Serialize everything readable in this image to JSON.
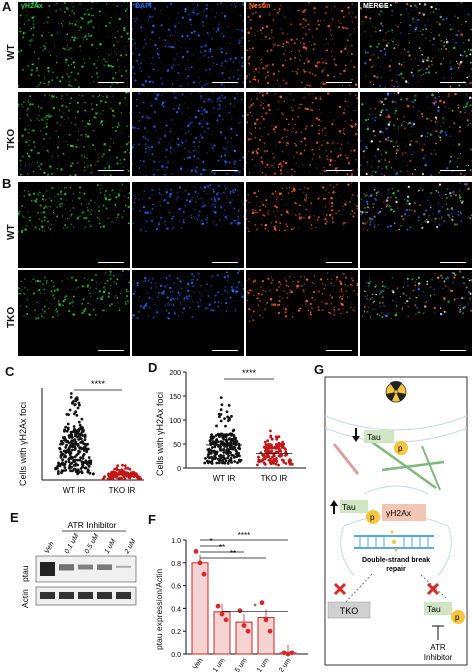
{
  "panels": {
    "a_letter": "A",
    "b_letter": "B",
    "c_letter": "C",
    "d_letter": "D",
    "e_letter": "E",
    "f_letter": "F",
    "g_letter": "G"
  },
  "microscopy": {
    "channels": [
      "γH2Ax",
      "DAPI",
      "Nestin",
      "MERGE"
    ],
    "row_wt": "WT",
    "row_tko": "TKO",
    "channel_colors": [
      "#2fd14a",
      "#2a6dff",
      "#ff6a2a",
      "#e8b7e8"
    ]
  },
  "chart_data": [
    {
      "type": "scatter",
      "panel": "C",
      "ylabel": "Cells with γH2Ax foci",
      "categories": [
        "WT IR",
        "TKO IR"
      ],
      "significance": "****",
      "note": "",
      "series": [
        {
          "values_summary": "WT IR distribution, median ~30, max ~90"
        },
        {
          "values_summary": "TKO IR distribution, median ~5, max ~15"
        }
      ]
    },
    {
      "type": "scatter",
      "panel": "D",
      "ylabel": "Cells with γH2Ax foci",
      "ylim": [
        0,
        200
      ],
      "yticks": [
        "0",
        "50",
        "100",
        "150",
        "200"
      ],
      "categories": [
        "WT IR",
        "TKO IR"
      ],
      "significance": "****",
      "series": [
        {
          "values_summary": "WT IR median ~45, max ~150"
        },
        {
          "values_summary": "TKO IR median ~30, max ~80"
        }
      ]
    },
    {
      "type": "bar",
      "panel": "F",
      "ylabel": "ptau expression/Actin",
      "ylim": [
        0,
        1.0
      ],
      "yticks": [
        "0.0",
        "0.2",
        "0.4",
        "0.6",
        "0.8",
        "1.0"
      ],
      "categories": [
        "Veh",
        "0.1 um",
        "0.5 um",
        "1 um",
        "2 um"
      ],
      "values": [
        0.8,
        0.37,
        0.28,
        0.32,
        0.01
      ],
      "points": [
        [
          0.9,
          0.8,
          0.7
        ],
        [
          0.42,
          0.35,
          0.3
        ],
        [
          0.38,
          0.25,
          0.2
        ],
        [
          0.45,
          0.3,
          0.2
        ],
        [
          0.01,
          0.0,
          0.01
        ]
      ],
      "significance": [
        "*",
        "**",
        "**",
        "****",
        "*"
      ]
    }
  ],
  "western": {
    "title": "ATR Inhibitor",
    "lanes": [
      "Veh",
      "0.1 uM",
      "0.5 uM",
      "1 uM",
      "2 uM"
    ],
    "row_ptau": "ptau",
    "row_actin": "Actin"
  },
  "diagram": {
    "tau_label": "Tau",
    "p_label": "p",
    "tau_label_2": "Tau",
    "yh2ax_label": "γH2Ax",
    "dsb_label": "Double-strand break",
    "repair_label": "repair",
    "tko_label": "TKO",
    "tau_label_3": "Tau",
    "atr_label": "ATR Inhibitor"
  }
}
